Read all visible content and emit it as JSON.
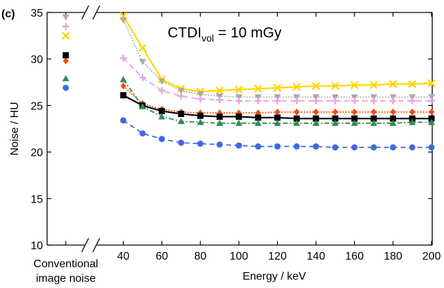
{
  "panel_label": "(c)",
  "chart_data": {
    "type": "line",
    "annotation": {
      "prefix": "CTDI",
      "subscript": "vol",
      "suffix": " = 10 mGy"
    },
    "xlabel": "Energy / keV",
    "ylabel": "Noise / HU",
    "conventional_label_lines": [
      "Conventional",
      "image noise"
    ],
    "xlim": [
      40,
      200
    ],
    "ylim": [
      10,
      35
    ],
    "xticks": [
      40,
      60,
      80,
      100,
      120,
      140,
      160,
      180,
      200
    ],
    "yticks": [
      10,
      15,
      20,
      25,
      30,
      35
    ],
    "x": [
      40,
      50,
      60,
      70,
      80,
      90,
      100,
      110,
      120,
      130,
      140,
      150,
      160,
      170,
      180,
      190,
      200
    ],
    "grid": false,
    "legend": "none",
    "series": [
      {
        "color": "#ffd700",
        "marker": "x",
        "dash": "",
        "width": 2.2,
        "conventional": 32.5,
        "values": [
          34.6,
          31.2,
          27.8,
          26.8,
          26.5,
          26.6,
          26.7,
          26.8,
          26.9,
          27.0,
          27.1,
          27.1,
          27.2,
          27.2,
          27.3,
          27.3,
          27.4
        ]
      },
      {
        "color": "#a9a9a9",
        "marker": "triangle-down",
        "dash": "2,2",
        "width": 1.6,
        "conventional": 34.5,
        "values": [
          34.2,
          29.7,
          27.6,
          26.6,
          26.2,
          26.0,
          25.9,
          25.9,
          25.9,
          25.9,
          25.9,
          25.9,
          25.9,
          25.9,
          25.9,
          25.9,
          25.9
        ]
      },
      {
        "color": "#e6a3e6",
        "marker": "plus",
        "dash": "8,5",
        "width": 1.8,
        "conventional": 33.5,
        "values": [
          30.1,
          28.0,
          26.6,
          26.0,
          25.7,
          25.6,
          25.5,
          25.5,
          25.5,
          25.5,
          25.5,
          25.5,
          25.5,
          25.5,
          25.5,
          25.5,
          25.5
        ]
      },
      {
        "color": "#ff4500",
        "marker": "diamond",
        "dash": "2,2",
        "width": 1.8,
        "conventional": 29.8,
        "values": [
          27.1,
          25.2,
          24.6,
          24.3,
          24.2,
          24.2,
          24.2,
          24.2,
          24.3,
          24.3,
          24.3,
          24.3,
          24.3,
          24.3,
          24.3,
          24.3,
          24.3
        ]
      },
      {
        "color": "#000000",
        "marker": "square",
        "dash": "",
        "width": 2.2,
        "conventional": 30.4,
        "values": [
          26.1,
          25.0,
          24.4,
          24.1,
          23.9,
          23.8,
          23.8,
          23.7,
          23.7,
          23.6,
          23.6,
          23.6,
          23.6,
          23.6,
          23.6,
          23.6,
          23.6
        ]
      },
      {
        "color": "#2e8b57",
        "marker": "triangle-up",
        "dash": "7,3,2,3",
        "width": 1.8,
        "conventional": 27.9,
        "values": [
          27.8,
          24.9,
          23.8,
          23.3,
          23.2,
          23.1,
          23.1,
          23.1,
          23.1,
          23.1,
          23.1,
          23.1,
          23.1,
          23.1,
          23.1,
          23.2,
          23.2
        ]
      },
      {
        "color": "#4169e1",
        "marker": "circle",
        "dash": "7,5",
        "width": 1.8,
        "conventional": 26.9,
        "values": [
          23.4,
          22.0,
          21.4,
          21.0,
          20.9,
          20.8,
          20.7,
          20.6,
          20.6,
          20.6,
          20.6,
          20.5,
          20.5,
          20.5,
          20.5,
          20.5,
          20.5
        ]
      }
    ]
  }
}
